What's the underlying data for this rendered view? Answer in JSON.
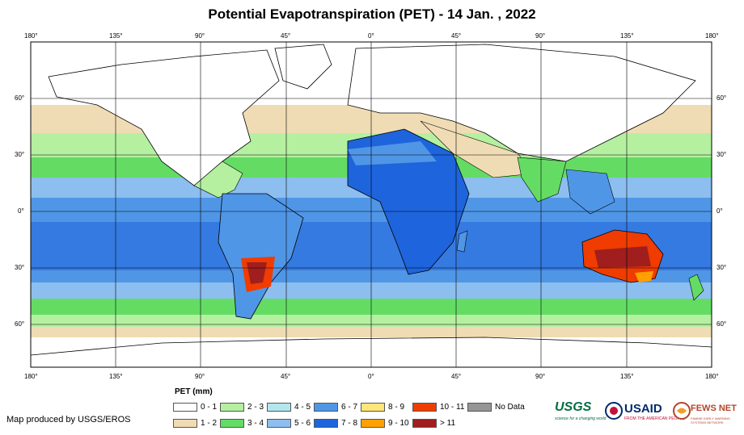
{
  "title": "Potential Evapotranspiration (PET) - 14 Jan. , 2022",
  "longitude_labels": [
    "180°",
    "135°",
    "90°",
    "45°",
    "0°",
    "45°",
    "90°",
    "135°",
    "180°"
  ],
  "latitude_labels": [
    "60°",
    "30°",
    "0°",
    "30°",
    "60°"
  ],
  "legend": {
    "title": "PET (mm)",
    "items": [
      {
        "label": "0 - 1",
        "color": "#ffffff"
      },
      {
        "label": "1 - 2",
        "color": "#f0dcb4"
      },
      {
        "label": "2 - 3",
        "color": "#b4f0a0"
      },
      {
        "label": "3 - 4",
        "color": "#64dc64"
      },
      {
        "label": "4 - 5",
        "color": "#b4e6f0"
      },
      {
        "label": "5 - 6",
        "color": "#8cbef0"
      },
      {
        "label": "6 - 7",
        "color": "#5096e6"
      },
      {
        "label": "7 - 8",
        "color": "#1e64dc"
      },
      {
        "label": "8 - 9",
        "color": "#ffe678"
      },
      {
        "label": "9 - 10",
        "color": "#ffa000"
      },
      {
        "label": "10 - 11",
        "color": "#f03c00"
      },
      {
        "label": "> 11",
        "color": "#a01e1e"
      },
      {
        "label": "No Data",
        "color": "#969696"
      }
    ]
  },
  "credit": "Map produced by USGS/EROS",
  "logos": {
    "usgs": "USGS",
    "usgs_tagline": "science for a changing world",
    "usaid": "USAID",
    "usaid_tagline": "FROM THE AMERICAN PEOPLE",
    "fewsnet": "FEWS NET",
    "fewsnet_tagline": "FAMINE EARLY WARNING SYSTEMS NETWORK"
  }
}
